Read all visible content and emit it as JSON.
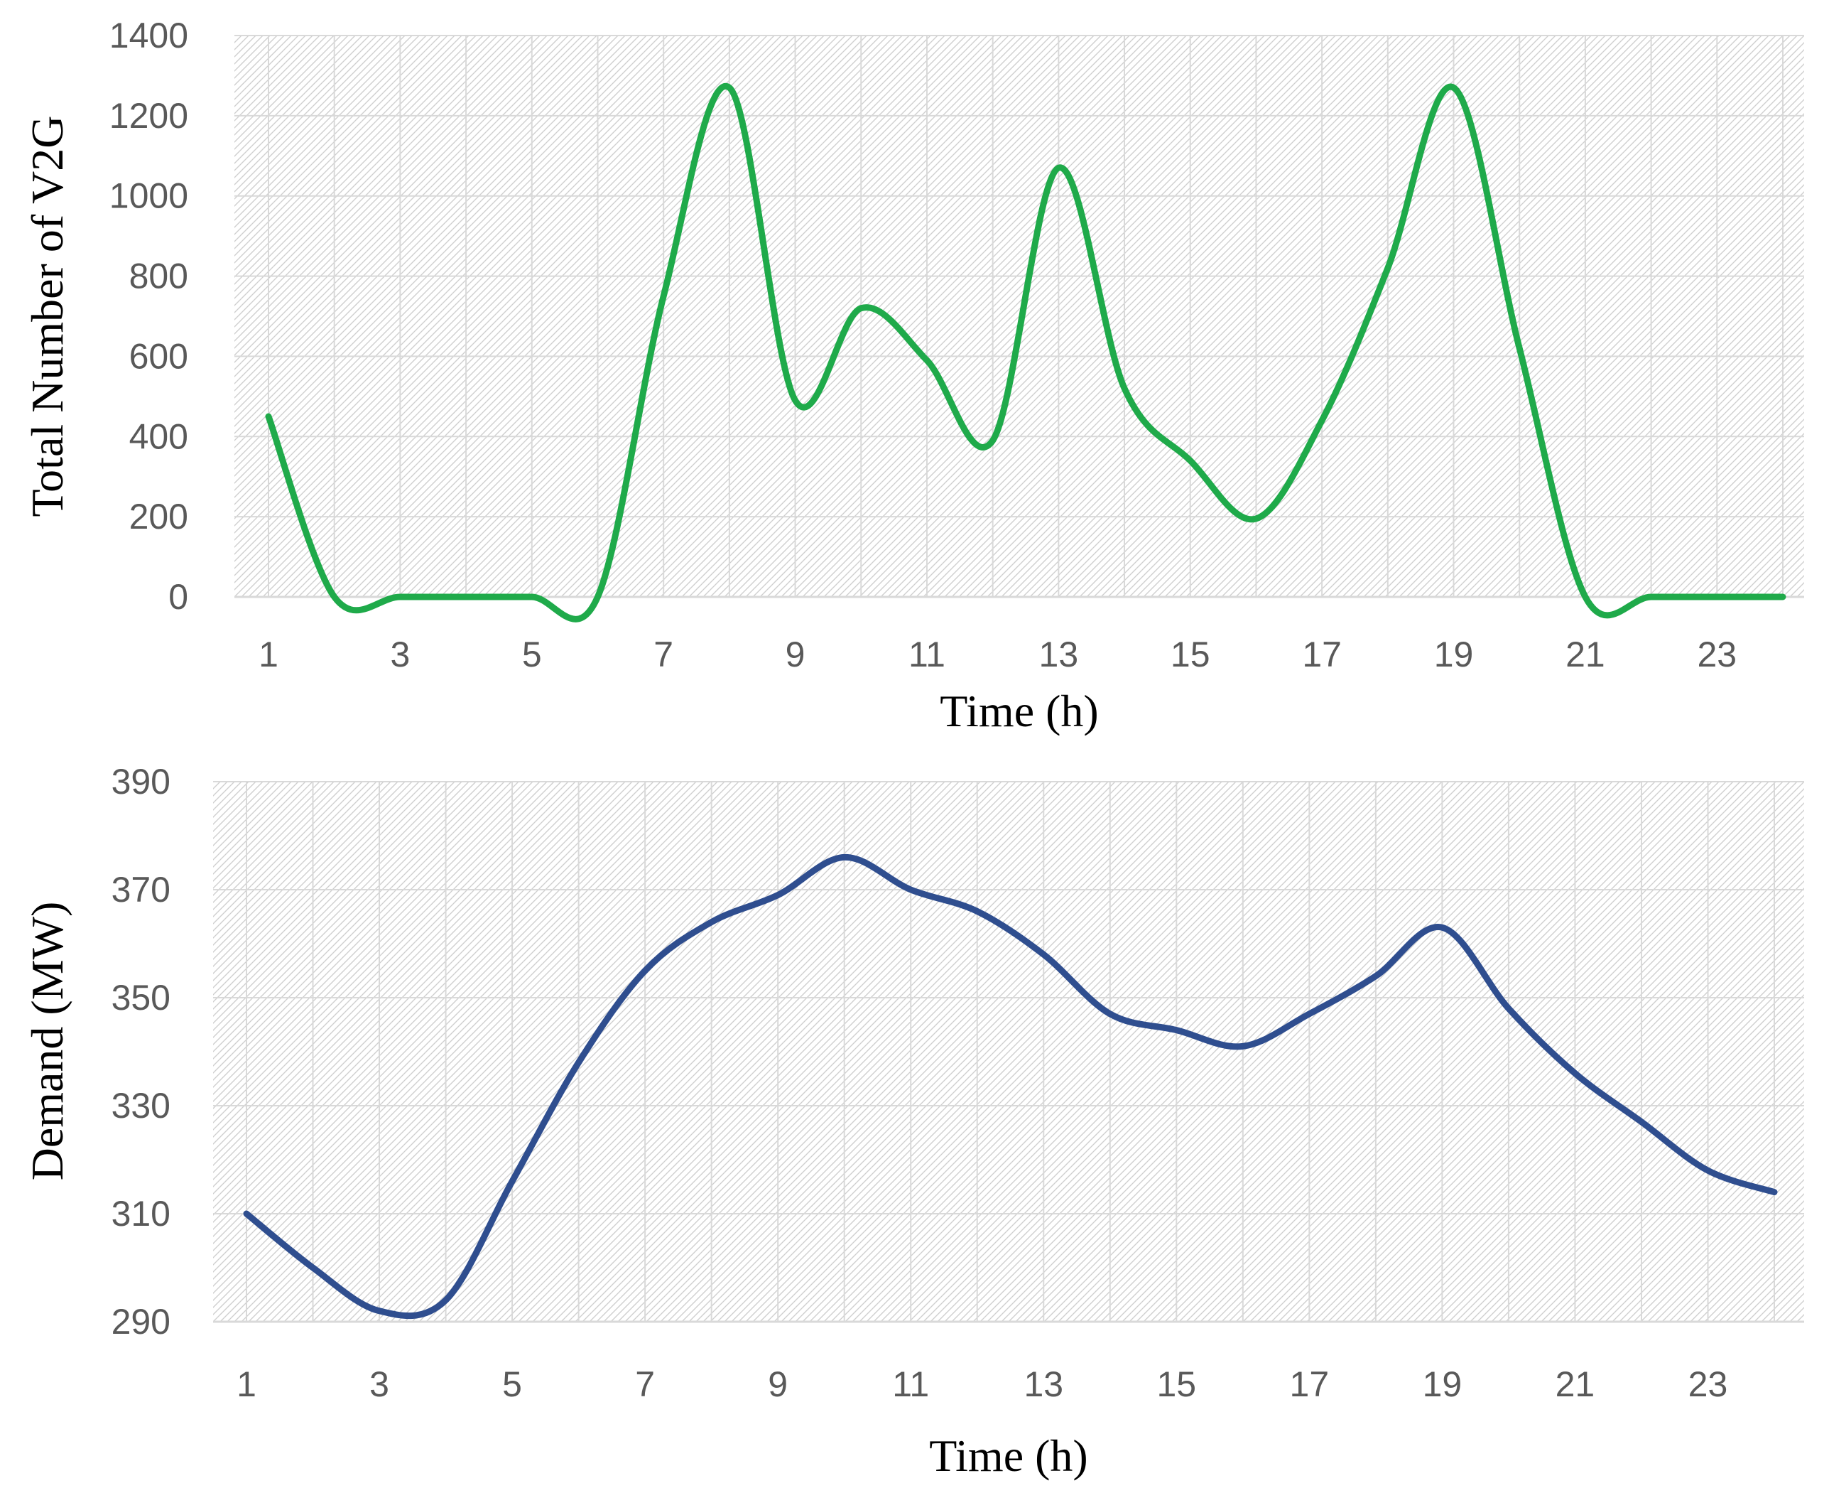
{
  "colors": {
    "top_line": "#1faa4a",
    "bottom_line": "#2f4e8f",
    "grid": "#d9d9d9",
    "hatch": "#cfcfcf",
    "tick_text": "#595959"
  },
  "chart_data": [
    {
      "type": "line",
      "xlabel": "Time (h)",
      "ylabel": "Total Number of V2G",
      "xlim": [
        1,
        24
      ],
      "ylim": [
        0,
        1400
      ],
      "x_ticks": [
        "1",
        "3",
        "5",
        "7",
        "9",
        "11",
        "13",
        "15",
        "17",
        "19",
        "21",
        "23"
      ],
      "y_ticks": [
        "0",
        "200",
        "400",
        "600",
        "800",
        "1000",
        "1200",
        "1400"
      ],
      "grid": true,
      "smooth": true,
      "x": [
        1,
        2,
        3,
        4,
        5,
        6,
        7,
        8,
        9,
        10,
        11,
        12,
        13,
        14,
        15,
        16,
        17,
        18,
        19,
        20,
        21,
        22,
        23,
        24
      ],
      "series": [
        {
          "values": [
            450,
            0,
            0,
            0,
            0,
            0,
            750,
            1270,
            490,
            720,
            590,
            390,
            1070,
            520,
            340,
            195,
            440,
            820,
            1270,
            620,
            0,
            0,
            0,
            0
          ]
        }
      ]
    },
    {
      "type": "line",
      "xlabel": "Time (h)",
      "ylabel": "Demand (MW)",
      "xlim": [
        1,
        24
      ],
      "ylim": [
        290,
        390
      ],
      "x_ticks": [
        "1",
        "3",
        "5",
        "7",
        "9",
        "11",
        "13",
        "15",
        "17",
        "19",
        "21",
        "23"
      ],
      "y_ticks": [
        "290",
        "310",
        "330",
        "350",
        "370",
        "390"
      ],
      "grid": true,
      "smooth": true,
      "x": [
        1,
        2,
        3,
        4,
        5,
        6,
        7,
        8,
        9,
        10,
        11,
        12,
        13,
        14,
        15,
        16,
        17,
        18,
        19,
        20,
        21,
        22,
        23,
        24
      ],
      "series": [
        {
          "values": [
            310,
            300,
            292,
            294,
            316,
            338,
            355,
            364,
            369,
            376,
            370,
            366,
            358,
            347,
            344,
            341,
            347,
            354,
            363,
            348,
            336,
            327,
            318,
            314
          ]
        }
      ]
    }
  ]
}
